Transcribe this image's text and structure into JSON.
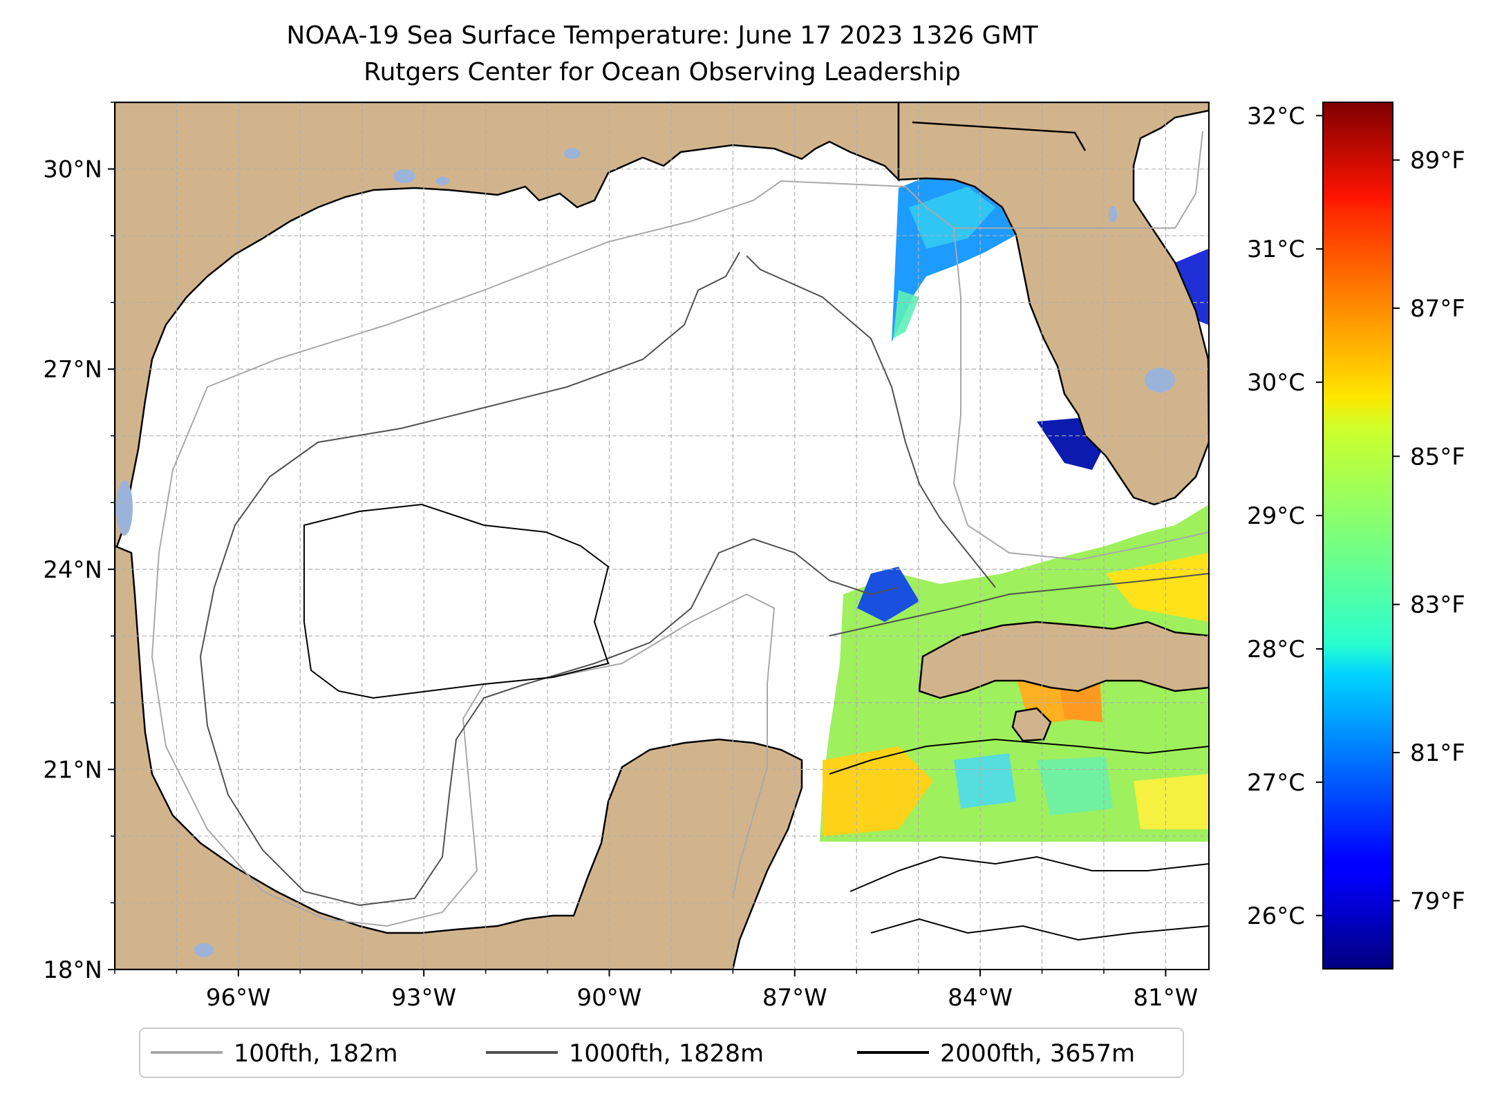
{
  "title": {
    "line1": "NOAA-19 Sea Surface Temperature: June 17 2023 1326 GMT",
    "line2": "Rutgers Center for Ocean Observing Leadership"
  },
  "map": {
    "lon_range": [
      -98,
      -80.3
    ],
    "lat_range": [
      18,
      31
    ],
    "lat_ticks": [
      {
        "value": 30,
        "label": "30°N"
      },
      {
        "value": 27,
        "label": "27°N"
      },
      {
        "value": 24,
        "label": "24°N"
      },
      {
        "value": 21,
        "label": "21°N"
      },
      {
        "value": 18,
        "label": "18°N"
      }
    ],
    "lon_ticks": [
      {
        "value": -96,
        "label": "96°W"
      },
      {
        "value": -93,
        "label": "93°W"
      },
      {
        "value": -90,
        "label": "90°W"
      },
      {
        "value": -87,
        "label": "87°W"
      },
      {
        "value": -84,
        "label": "84°W"
      },
      {
        "value": -81,
        "label": "81°W"
      }
    ],
    "colors": {
      "land": "#d2b48c",
      "lakes": "#9bb3d9",
      "coast": "#000000",
      "ocean": "#ffffff",
      "grid": "#b0b0b0"
    }
  },
  "colorbar": {
    "colormap": "jet",
    "celsius_range": [
      25.6,
      32.1
    ],
    "celsius_ticks": [
      {
        "value": 32,
        "label": "32°C"
      },
      {
        "value": 31,
        "label": "31°C"
      },
      {
        "value": 30,
        "label": "30°C"
      },
      {
        "value": 29,
        "label": "29°C"
      },
      {
        "value": 28,
        "label": "28°C"
      },
      {
        "value": 27,
        "label": "27°C"
      },
      {
        "value": 26,
        "label": "26°C"
      }
    ],
    "fahrenheit_ticks": [
      {
        "value": 89,
        "label": "89°F"
      },
      {
        "value": 87,
        "label": "87°F"
      },
      {
        "value": 85,
        "label": "85°F"
      },
      {
        "value": 83,
        "label": "83°F"
      },
      {
        "value": 81,
        "label": "81°F"
      },
      {
        "value": 79,
        "label": "79°F"
      }
    ]
  },
  "legend": {
    "items": [
      {
        "label": "100fth, 182m",
        "color": "#a8a8a8"
      },
      {
        "label": "1000fth, 1828m",
        "color": "#505050"
      },
      {
        "label": "2000fth, 3657m",
        "color": "#000000"
      }
    ]
  }
}
